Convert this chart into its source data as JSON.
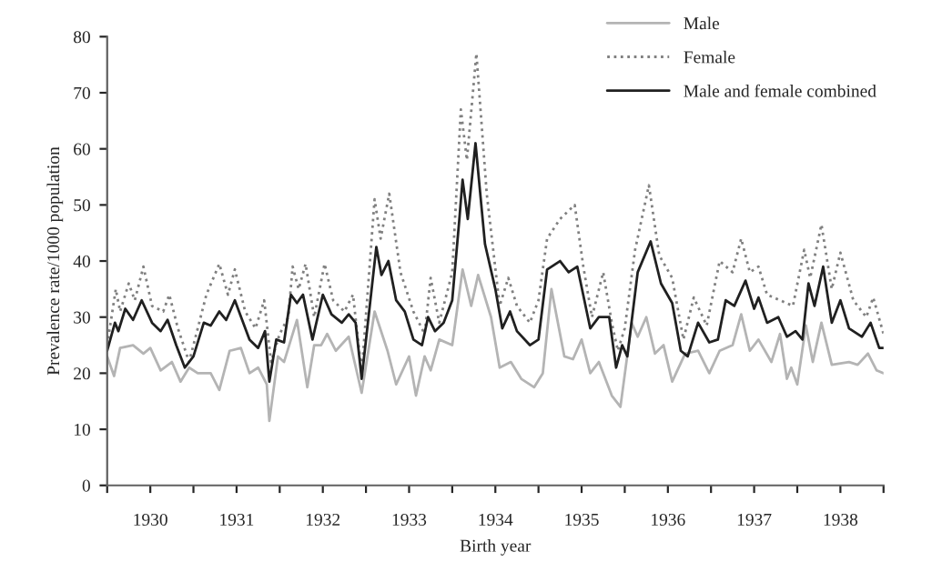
{
  "chart_data": {
    "type": "line",
    "xlabel": "Birth year",
    "ylabel": "Prevalence rate/1000 population",
    "xlim": [
      1930,
      1939
    ],
    "ylim": [
      0,
      80
    ],
    "yticks": [
      0,
      10,
      20,
      30,
      40,
      50,
      60,
      70,
      80
    ],
    "xticks": [
      {
        "value": 1930,
        "label": null
      },
      {
        "value": 1930.5,
        "label": "1930"
      },
      {
        "value": 1931,
        "label": null
      },
      {
        "value": 1931.5,
        "label": "1931"
      },
      {
        "value": 1932,
        "label": null
      },
      {
        "value": 1932.5,
        "label": "1932"
      },
      {
        "value": 1933,
        "label": null
      },
      {
        "value": 1933.5,
        "label": "1933"
      },
      {
        "value": 1934,
        "label": null
      },
      {
        "value": 1934.5,
        "label": "1934"
      },
      {
        "value": 1935,
        "label": null
      },
      {
        "value": 1935.5,
        "label": "1935"
      },
      {
        "value": 1936,
        "label": null
      },
      {
        "value": 1936.5,
        "label": "1936"
      },
      {
        "value": 1937,
        "label": null
      },
      {
        "value": 1937.5,
        "label": "1937"
      },
      {
        "value": 1938,
        "label": null
      },
      {
        "value": 1938.5,
        "label": "1938"
      },
      {
        "value": 1939,
        "label": null
      }
    ],
    "grid": false,
    "legend": "top right",
    "marker": "none",
    "series": [
      {
        "name": "Male",
        "color": "#b4b4b4",
        "line_style": "solid",
        "x": [
          1930.0,
          1930.08,
          1930.15,
          1930.3,
          1930.42,
          1930.5,
          1930.62,
          1930.75,
          1930.85,
          1930.95,
          1931.05,
          1931.2,
          1931.3,
          1931.42,
          1931.55,
          1931.65,
          1931.75,
          1931.85,
          1931.88,
          1931.98,
          1932.05,
          1932.2,
          1932.32,
          1932.4,
          1932.48,
          1932.55,
          1932.65,
          1932.8,
          1932.95,
          1933.1,
          1933.25,
          1933.35,
          1933.5,
          1933.58,
          1933.68,
          1933.75,
          1933.85,
          1934.0,
          1934.12,
          1934.22,
          1934.3,
          1934.45,
          1934.55,
          1934.68,
          1934.8,
          1934.95,
          1935.05,
          1935.15,
          1935.3,
          1935.4,
          1935.5,
          1935.6,
          1935.7,
          1935.85,
          1935.95,
          1936.08,
          1936.15,
          1936.25,
          1936.35,
          1936.45,
          1936.55,
          1936.7,
          1936.85,
          1936.98,
          1937.1,
          1937.25,
          1937.35,
          1937.45,
          1937.55,
          1937.7,
          1937.8,
          1937.88,
          1937.93,
          1938.0,
          1938.1,
          1938.18,
          1938.28,
          1938.4,
          1938.6,
          1938.7,
          1938.82,
          1938.92,
          1939.0
        ],
        "values": [
          23,
          19.5,
          24.5,
          25,
          23.5,
          24.5,
          20.5,
          22,
          18.5,
          21,
          20,
          20,
          17,
          24,
          24.5,
          20,
          21,
          18,
          11.5,
          23,
          22,
          29.5,
          17.5,
          25,
          25,
          27,
          24,
          26.5,
          16.5,
          31,
          24,
          18,
          23,
          16,
          23,
          20.5,
          26,
          25,
          38.5,
          32,
          37.5,
          30,
          21,
          22,
          19,
          17.5,
          20,
          35,
          23,
          22.5,
          26,
          20,
          22,
          16,
          14,
          29,
          26.5,
          30,
          23.5,
          25,
          18.5,
          23.5,
          24,
          20,
          24,
          25,
          30.5,
          24,
          26,
          22,
          27,
          19,
          21,
          18,
          28.5,
          22,
          29,
          21.5,
          22,
          21.5,
          23.5,
          20.5,
          20
        ]
      },
      {
        "name": "Female",
        "color": "#808080",
        "line_style": "dotted",
        "x": [
          1930.0,
          1930.05,
          1930.1,
          1930.15,
          1930.25,
          1930.32,
          1930.42,
          1930.52,
          1930.65,
          1930.72,
          1930.82,
          1930.95,
          1931.05,
          1931.15,
          1931.3,
          1931.4,
          1931.48,
          1931.6,
          1931.72,
          1931.82,
          1931.9,
          1932.0,
          1932.1,
          1932.15,
          1932.22,
          1932.3,
          1932.4,
          1932.52,
          1932.62,
          1932.75,
          1932.85,
          1932.95,
          1933.1,
          1933.17,
          1933.27,
          1933.4,
          1933.55,
          1933.68,
          1933.75,
          1933.85,
          1934.0,
          1934.1,
          1934.17,
          1934.28,
          1934.4,
          1934.55,
          1934.65,
          1934.75,
          1934.9,
          1935.0,
          1935.1,
          1935.25,
          1935.42,
          1935.52,
          1935.62,
          1935.75,
          1935.85,
          1935.92,
          1936.0,
          1936.12,
          1936.28,
          1936.4,
          1936.55,
          1936.68,
          1936.8,
          1936.95,
          1937.1,
          1937.25,
          1937.35,
          1937.45,
          1937.55,
          1937.65,
          1937.8,
          1937.95,
          1938.08,
          1938.15,
          1938.28,
          1938.4,
          1938.5,
          1938.65,
          1938.8,
          1938.88,
          1939.0
        ],
        "values": [
          25,
          30,
          35,
          31,
          36,
          33,
          39,
          32,
          31,
          34,
          28,
          22,
          28,
          34,
          39.5,
          34,
          38.5,
          31,
          28,
          33,
          22,
          27,
          30,
          39,
          35,
          39.5,
          30,
          39.5,
          33,
          31,
          34,
          20,
          51,
          44,
          52,
          38,
          31,
          27,
          37,
          29,
          38,
          67,
          58,
          77,
          52,
          32,
          37,
          32,
          29,
          33,
          44,
          47.5,
          50,
          39,
          30,
          38,
          29,
          24,
          28,
          42,
          53.5,
          41,
          37,
          26,
          33.5,
          28.5,
          40,
          38,
          44,
          38,
          39,
          34,
          33,
          32,
          42,
          37,
          46.5,
          35,
          41.5,
          33,
          30,
          33.5,
          27
        ]
      },
      {
        "name": "Male and female combined",
        "color": "#202020",
        "line_style": "solid",
        "x": [
          1930.0,
          1930.09,
          1930.13,
          1930.21,
          1930.3,
          1930.4,
          1930.52,
          1930.62,
          1930.7,
          1930.8,
          1930.9,
          1931.0,
          1931.12,
          1931.2,
          1931.3,
          1931.38,
          1931.48,
          1931.65,
          1931.75,
          1931.83,
          1931.88,
          1931.96,
          1932.05,
          1932.13,
          1932.2,
          1932.27,
          1932.38,
          1932.5,
          1932.6,
          1932.72,
          1932.8,
          1932.88,
          1932.95,
          1933.12,
          1933.18,
          1933.26,
          1933.35,
          1933.45,
          1933.55,
          1933.65,
          1933.72,
          1933.8,
          1933.9,
          1934.0,
          1934.08,
          1934.12,
          1934.18,
          1934.27,
          1934.38,
          1934.5,
          1934.58,
          1934.67,
          1934.75,
          1934.9,
          1935.0,
          1935.1,
          1935.25,
          1935.35,
          1935.45,
          1935.6,
          1935.7,
          1935.82,
          1935.9,
          1935.97,
          1936.03,
          1936.15,
          1936.3,
          1936.42,
          1936.55,
          1936.65,
          1936.73,
          1936.85,
          1936.98,
          1937.08,
          1937.17,
          1937.27,
          1937.4,
          1937.5,
          1937.55,
          1937.65,
          1937.78,
          1937.88,
          1937.98,
          1938.06,
          1938.13,
          1938.2,
          1938.3,
          1938.4,
          1938.5,
          1938.6,
          1938.75,
          1938.85,
          1938.95,
          1939.0
        ],
        "values": [
          24,
          29,
          27.5,
          31.5,
          29.5,
          33,
          29,
          27.5,
          29.5,
          25,
          21,
          23,
          29,
          28.5,
          31,
          29.5,
          33,
          26,
          24.5,
          27.5,
          18.5,
          26,
          25.5,
          34,
          32.5,
          34,
          26,
          34,
          30.5,
          29,
          30.5,
          29,
          19,
          42.5,
          37.5,
          40,
          33,
          31,
          26,
          25,
          30,
          27.5,
          29,
          33,
          47,
          54.5,
          47.5,
          61,
          43,
          35,
          28,
          31,
          27.5,
          25,
          26,
          38.5,
          40,
          38,
          39,
          28,
          30,
          30,
          21,
          25,
          23,
          38,
          43.5,
          36,
          32.5,
          24,
          23,
          29,
          25.5,
          26,
          33,
          32,
          36.5,
          31.5,
          33.5,
          29,
          30,
          26.5,
          27.5,
          26,
          36,
          32,
          39,
          29,
          33,
          28,
          26.5,
          29,
          24.5,
          24.5
        ]
      }
    ]
  }
}
